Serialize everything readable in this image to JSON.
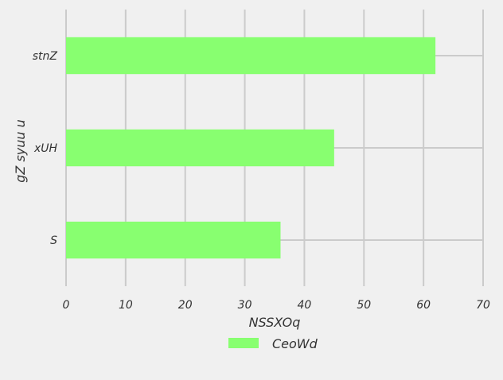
{
  "chart_data": {
    "type": "bar",
    "orientation": "horizontal",
    "categories": [
      "stnZ",
      "xUH",
      "S"
    ],
    "series": [
      {
        "name": "CeoWd",
        "values": [
          62,
          45,
          36
        ],
        "color": "#88ff70"
      }
    ],
    "xlabel": "NSSXOq",
    "ylabel": "gZ syuu u",
    "xlim": [
      0,
      70
    ],
    "xticks": [
      0,
      10,
      20,
      30,
      40,
      50,
      60,
      70
    ],
    "grid": true,
    "legend_position": "bottom-center",
    "colors": {
      "background": "#f0f0f0",
      "grid": "#cbcbcb",
      "text": "#333333"
    }
  }
}
